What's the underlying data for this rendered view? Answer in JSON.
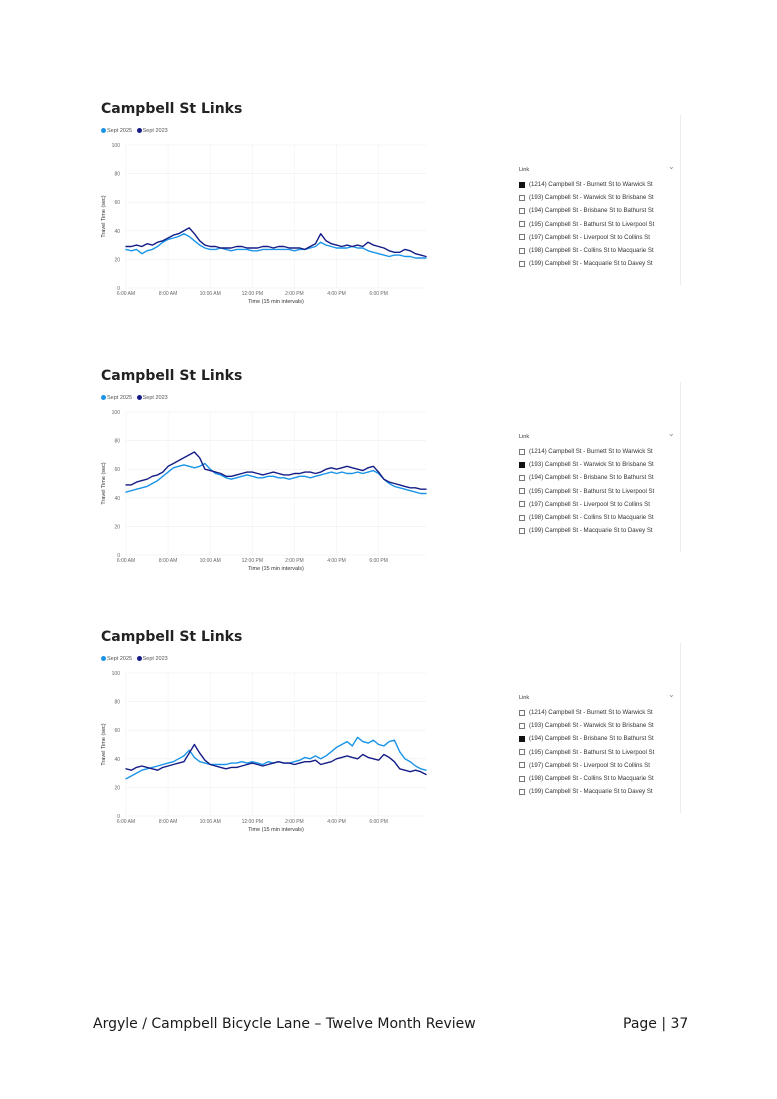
{
  "colors": {
    "sept_2025": "#1a94e8",
    "sept_2023": "#141d86"
  },
  "footer": {
    "left": "Argyle / Campbell Bicycle Lane – Twelve Month Review",
    "right": "Page | 37"
  },
  "slicer": {
    "header": "Link",
    "items": [
      "(1214) Campbell St - Burnett St to Warwick St",
      "(193) Campbell St - Warwick St to Brisbane St",
      "(194) Campbell St - Brisbane St to Bathurst St",
      "(195) Campbell St - Bathurst St to Liverpool St",
      "(197) Campbell St - Liverpool St to Collins St",
      "(198) Campbell St - Collins St to Macquarie St",
      "(199) Campbell St - Macquarie St to Davey St"
    ]
  },
  "chart_data": [
    {
      "type": "line",
      "title": "Campbell St Links",
      "selected_link": "(1214) Campbell St - Burnett St to Warwick St",
      "xlabel": "Time (15 min intervals)",
      "ylabel": "Travel Time (sec)",
      "ylim": [
        0,
        100
      ],
      "yticks": [
        0,
        20,
        40,
        60,
        80,
        100
      ],
      "xtick_labels": [
        "6:00 AM",
        "8:00 AM",
        "10:00 AM",
        "12:00 PM",
        "2:00 PM",
        "4:00 PM",
        "6:00 PM"
      ],
      "legend": [
        "Sept 2025",
        "Sept 2023"
      ],
      "series": [
        {
          "name": "Sept 2025",
          "values": [
            27,
            26,
            27,
            24,
            26,
            27,
            29,
            32,
            34,
            35,
            36,
            38,
            36,
            33,
            30,
            28,
            27,
            27,
            28,
            27,
            26,
            27,
            27,
            27,
            26,
            26,
            27,
            27,
            27,
            27,
            27,
            27,
            26,
            27,
            27,
            28,
            29,
            32,
            30,
            29,
            28,
            28,
            28,
            29,
            28,
            28,
            26,
            25,
            24,
            23,
            22,
            23,
            23,
            22,
            22,
            21,
            21,
            21
          ]
        },
        {
          "name": "Sept 2023",
          "values": [
            29,
            29,
            30,
            29,
            31,
            30,
            32,
            33,
            35,
            37,
            38,
            40,
            42,
            38,
            33,
            30,
            29,
            29,
            28,
            28,
            28,
            29,
            29,
            28,
            28,
            28,
            29,
            29,
            28,
            29,
            29,
            28,
            28,
            28,
            27,
            29,
            31,
            38,
            33,
            31,
            30,
            29,
            30,
            29,
            30,
            29,
            32,
            30,
            29,
            28,
            26,
            25,
            25,
            27,
            26,
            24,
            23,
            22
          ]
        }
      ]
    },
    {
      "type": "line",
      "title": "Campbell St Links",
      "selected_link": "(193) Campbell St - Warwick St to Brisbane St",
      "xlabel": "Time (15 min intervals)",
      "ylabel": "Travel Time (sec)",
      "ylim": [
        0,
        100
      ],
      "yticks": [
        0,
        20,
        40,
        60,
        80,
        100
      ],
      "xtick_labels": [
        "6:00 AM",
        "8:00 AM",
        "10:00 AM",
        "12:00 PM",
        "2:00 PM",
        "4:00 PM",
        "6:00 PM"
      ],
      "legend": [
        "Sept 2025",
        "Sept 2023"
      ],
      "series": [
        {
          "name": "Sept 2025",
          "values": [
            44,
            45,
            46,
            47,
            48,
            50,
            52,
            55,
            58,
            61,
            62,
            63,
            62,
            61,
            62,
            64,
            60,
            57,
            56,
            54,
            53,
            54,
            55,
            56,
            55,
            54,
            54,
            55,
            55,
            54,
            54,
            53,
            54,
            55,
            55,
            54,
            55,
            56,
            57,
            58,
            57,
            58,
            57,
            57,
            58,
            57,
            58,
            59,
            57,
            53,
            50,
            48,
            47,
            46,
            45,
            44,
            43,
            43
          ]
        },
        {
          "name": "Sept 2023",
          "values": [
            49,
            49,
            51,
            52,
            53,
            55,
            56,
            58,
            62,
            64,
            66,
            68,
            70,
            72,
            68,
            60,
            59,
            58,
            57,
            55,
            55,
            56,
            57,
            58,
            58,
            57,
            56,
            57,
            58,
            57,
            56,
            56,
            57,
            57,
            58,
            58,
            57,
            58,
            60,
            61,
            60,
            61,
            62,
            61,
            60,
            59,
            61,
            62,
            58,
            53,
            51,
            50,
            49,
            48,
            47,
            47,
            46,
            46
          ]
        }
      ]
    },
    {
      "type": "line",
      "title": "Campbell St Links",
      "selected_link": "(194) Campbell St - Brisbane St to Bathurst St",
      "xlabel": "Time (15 min intervals)",
      "ylabel": "Travel Time (sec)",
      "ylim": [
        0,
        100
      ],
      "yticks": [
        0,
        20,
        40,
        60,
        80,
        100
      ],
      "xtick_labels": [
        "6:00 AM",
        "8:00 AM",
        "10:00 AM",
        "12:00 PM",
        "2:00 PM",
        "4:00 PM",
        "6:00 PM"
      ],
      "legend": [
        "Sept 2025",
        "Sept 2023"
      ],
      "series": [
        {
          "name": "Sept 2025",
          "values": [
            26,
            28,
            30,
            32,
            33,
            34,
            35,
            36,
            37,
            38,
            40,
            42,
            46,
            41,
            38,
            37,
            36,
            36,
            36,
            36,
            37,
            37,
            38,
            37,
            38,
            37,
            36,
            38,
            37,
            38,
            37,
            37,
            38,
            39,
            41,
            40,
            42,
            40,
            42,
            45,
            48,
            50,
            52,
            49,
            55,
            52,
            51,
            53,
            50,
            49,
            52,
            53,
            45,
            40,
            38,
            35,
            33,
            32
          ]
        },
        {
          "name": "Sept 2023",
          "values": [
            33,
            32,
            34,
            35,
            34,
            33,
            32,
            34,
            35,
            36,
            37,
            38,
            44,
            50,
            44,
            39,
            36,
            35,
            34,
            33,
            34,
            34,
            35,
            36,
            37,
            36,
            35,
            36,
            37,
            38,
            37,
            37,
            36,
            37,
            38,
            38,
            39,
            36,
            37,
            38,
            40,
            41,
            42,
            41,
            40,
            43,
            41,
            40,
            39,
            43,
            41,
            38,
            33,
            32,
            31,
            32,
            31,
            29
          ]
        }
      ]
    }
  ]
}
